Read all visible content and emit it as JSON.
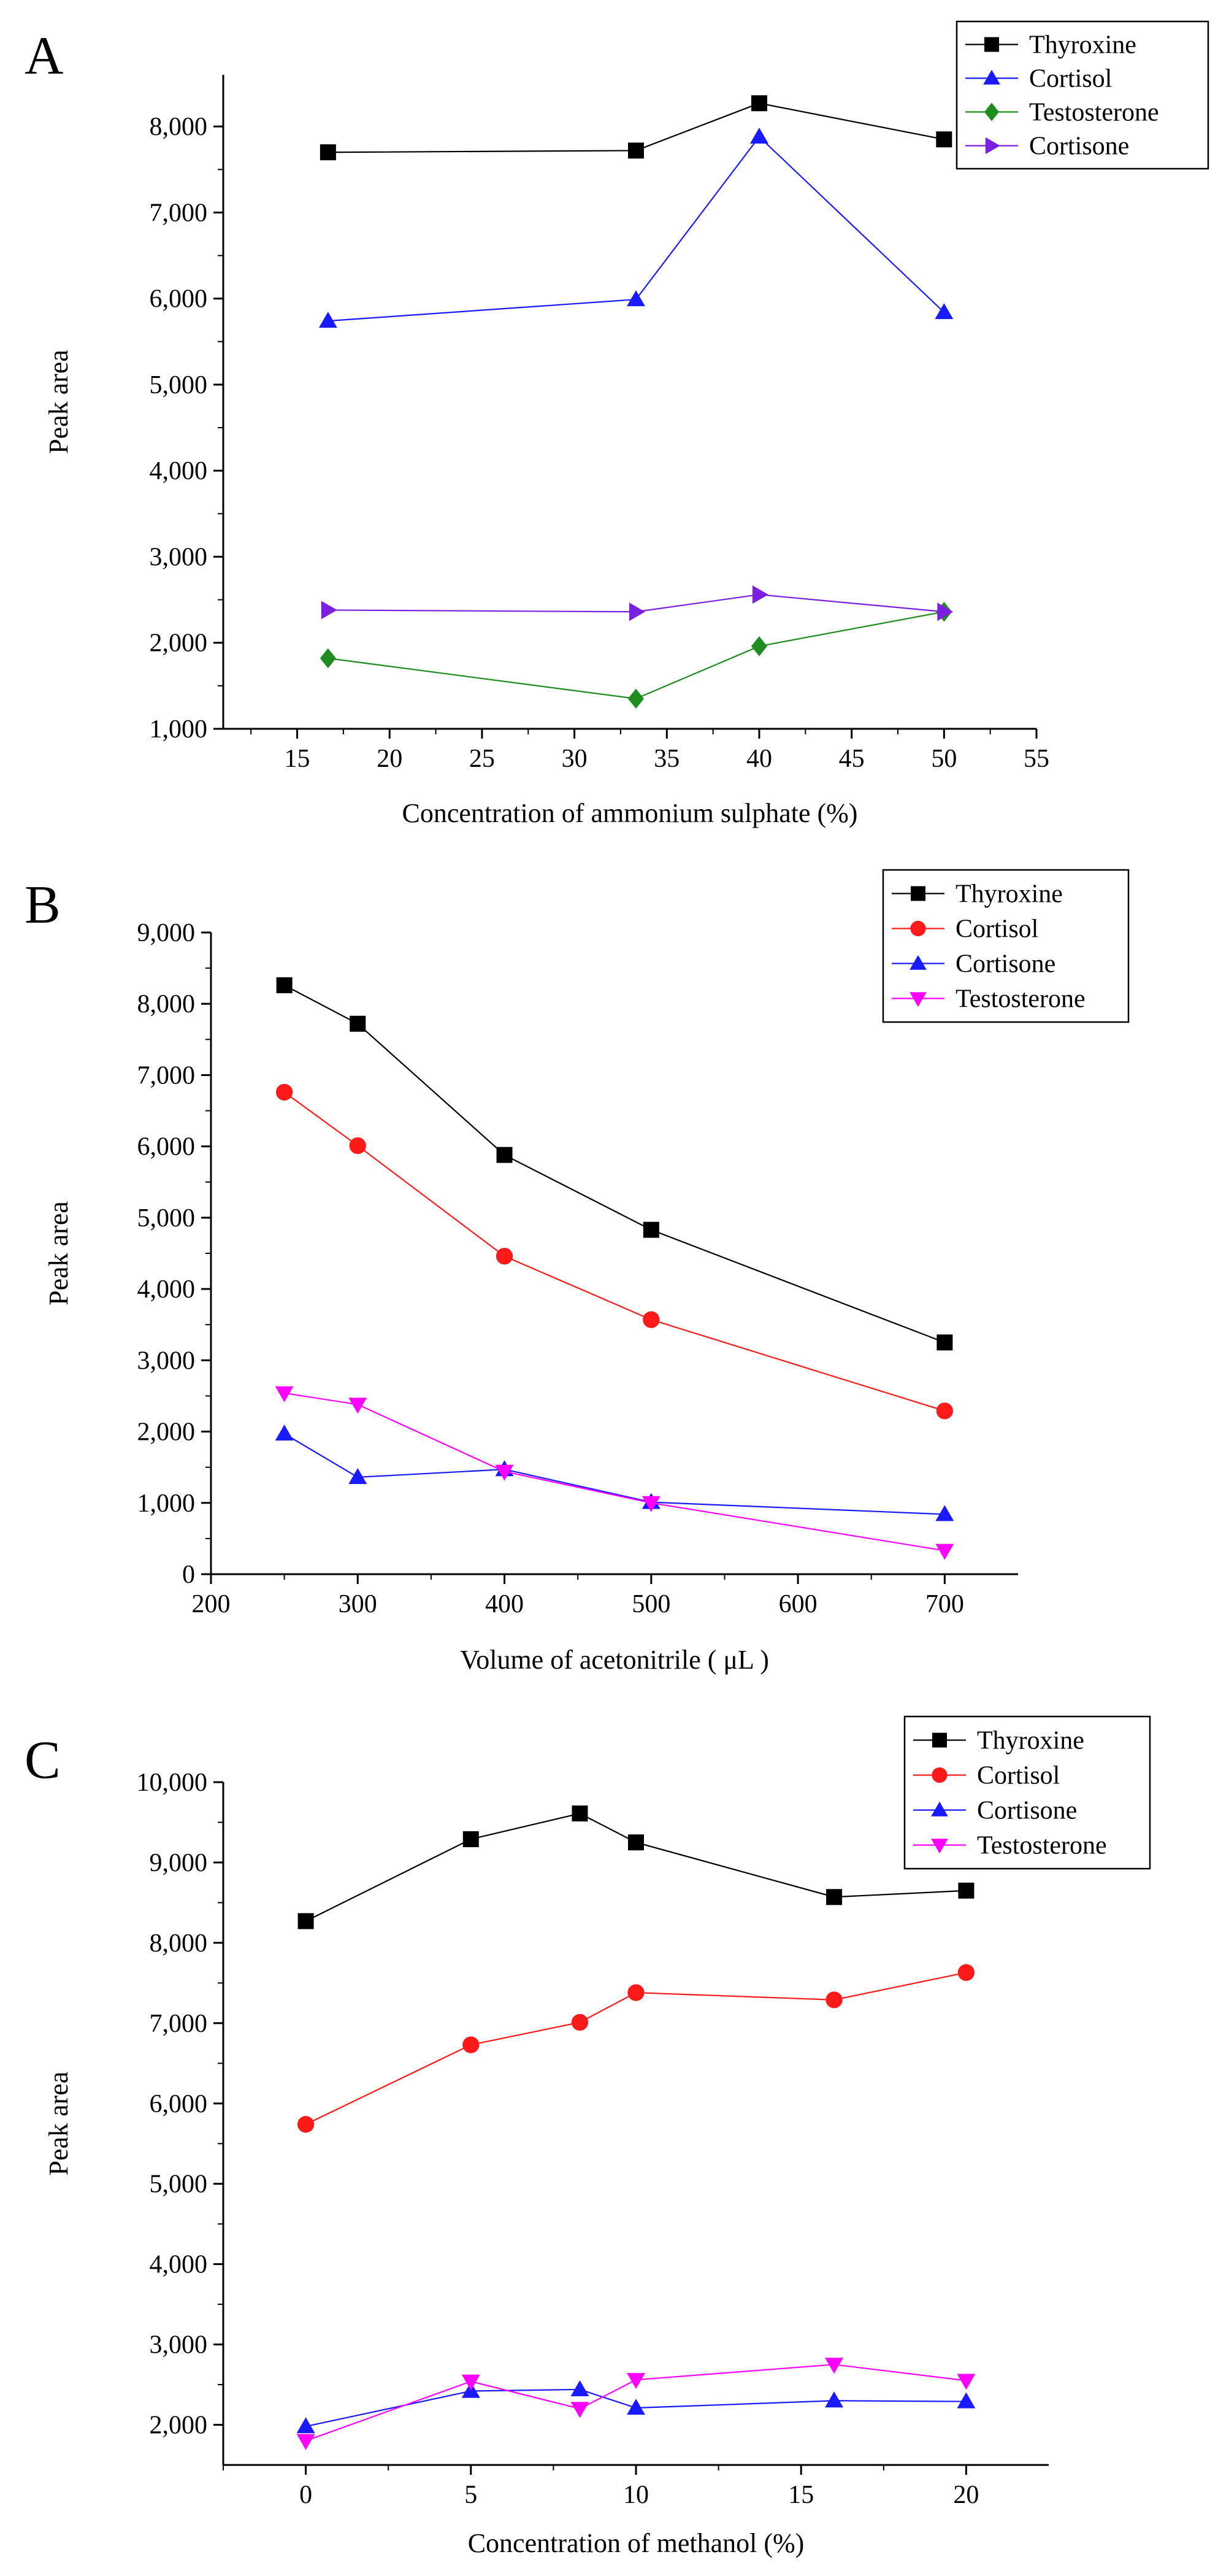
{
  "figure": {
    "panel_letters": [
      "A",
      "B",
      "C"
    ]
  },
  "chart_data": [
    {
      "panel": "A",
      "type": "line",
      "title": "",
      "xlabel": "Concentration of ammonium sulphate (%)",
      "ylabel": "Peak area",
      "xlim": [
        11,
        55
      ],
      "ylim": [
        1000,
        8600
      ],
      "xticks": [
        15,
        20,
        25,
        30,
        35,
        40,
        45,
        50,
        55
      ],
      "yticks": [
        1000,
        2000,
        3000,
        4000,
        5000,
        6000,
        7000,
        8000
      ],
      "xtick_labels": [
        "15",
        "20",
        "25",
        "30",
        "35",
        "40",
        "45",
        "50",
        "55"
      ],
      "ytick_labels": [
        "1,000",
        "2,000",
        "3,000",
        "4,000",
        "5,000",
        "6,000",
        "7,000",
        "8,000"
      ],
      "legend_position": "top-right",
      "series": [
        {
          "name": "Thyroxine",
          "color": "#000000",
          "marker": "square",
          "x": [
            16.67,
            33.33,
            40,
            50
          ],
          "y": [
            7700,
            7720,
            8270,
            7850
          ]
        },
        {
          "name": "Cortisol",
          "color": "#1a1aff",
          "marker": "triangle-up",
          "x": [
            16.67,
            33.33,
            40,
            50
          ],
          "y": [
            5740,
            5990,
            7880,
            5840
          ]
        },
        {
          "name": "Testosterone",
          "color": "#1e8c1e",
          "marker": "diamond",
          "x": [
            16.67,
            33.33,
            40,
            50
          ],
          "y": [
            1820,
            1350,
            1960,
            2360
          ]
        },
        {
          "name": "Cortisone",
          "color": "#7b1fe0",
          "marker": "triangle-right",
          "x": [
            16.67,
            33.33,
            40,
            50
          ],
          "y": [
            2380,
            2360,
            2560,
            2360
          ]
        }
      ]
    },
    {
      "panel": "B",
      "type": "line",
      "title": "",
      "xlabel": "Volume of acetonitrile ( μL )",
      "ylabel": "Peak area",
      "xlim": [
        200,
        750
      ],
      "ylim": [
        0,
        9000
      ],
      "xticks": [
        200,
        300,
        400,
        500,
        600,
        700
      ],
      "yticks": [
        0,
        1000,
        2000,
        3000,
        4000,
        5000,
        6000,
        7000,
        8000,
        9000
      ],
      "xtick_labels": [
        "200",
        "300",
        "400",
        "500",
        "600",
        "700"
      ],
      "ytick_labels": [
        "0",
        "1,000",
        "2,000",
        "3,000",
        "4,000",
        "5,000",
        "6,000",
        "7,000",
        "8,000",
        "9,000"
      ],
      "legend_position": "top-right",
      "series": [
        {
          "name": "Thyroxine",
          "color": "#000000",
          "marker": "square",
          "x": [
            250,
            300,
            400,
            500,
            700
          ],
          "y": [
            8260,
            7720,
            5880,
            4830,
            3250
          ]
        },
        {
          "name": "Cortisol",
          "color": "#ff1a1a",
          "marker": "circle",
          "x": [
            250,
            300,
            400,
            500,
            700
          ],
          "y": [
            6760,
            6010,
            4460,
            3570,
            2290
          ]
        },
        {
          "name": "Cortisone",
          "color": "#1a1aff",
          "marker": "triangle-up",
          "x": [
            250,
            300,
            400,
            500,
            700
          ],
          "y": [
            1970,
            1360,
            1470,
            1010,
            840
          ]
        },
        {
          "name": "Testosterone",
          "color": "#ff00ff",
          "marker": "triangle-down",
          "x": [
            250,
            300,
            400,
            500,
            700
          ],
          "y": [
            2540,
            2380,
            1440,
            1000,
            330
          ]
        }
      ]
    },
    {
      "panel": "C",
      "type": "line",
      "title": "",
      "xlabel": "Concentration of methanol (%)",
      "ylabel": "Peak area",
      "xlim": [
        -2.5,
        22.5
      ],
      "ylim": [
        1500,
        10000
      ],
      "xticks": [
        0,
        5,
        10,
        15,
        20
      ],
      "yticks": [
        2000,
        3000,
        4000,
        5000,
        6000,
        7000,
        8000,
        9000,
        10000
      ],
      "xtick_labels": [
        "0",
        "5",
        "10",
        "15",
        "20"
      ],
      "ytick_labels": [
        "2,000",
        "3,000",
        "4,000",
        "5,000",
        "6,000",
        "7,000",
        "8,000",
        "9,000",
        "10,000"
      ],
      "legend_position": "top-right",
      "series": [
        {
          "name": "Thyroxine",
          "color": "#000000",
          "marker": "square",
          "x": [
            0,
            5,
            8.3,
            10,
            16,
            20
          ],
          "y": [
            8270,
            9290,
            9610,
            9250,
            8570,
            8650
          ]
        },
        {
          "name": "Cortisol",
          "color": "#ff1a1a",
          "marker": "circle",
          "x": [
            0,
            5,
            8.3,
            10,
            16,
            20
          ],
          "y": [
            5740,
            6730,
            7010,
            7380,
            7290,
            7630
          ]
        },
        {
          "name": "Cortisone",
          "color": "#1a1aff",
          "marker": "triangle-up",
          "x": [
            0,
            5,
            8.3,
            10,
            16,
            20
          ],
          "y": [
            1980,
            2420,
            2440,
            2210,
            2300,
            2290
          ]
        },
        {
          "name": "Testosterone",
          "color": "#ff00ff",
          "marker": "triangle-down",
          "x": [
            0,
            5,
            8.3,
            10,
            16,
            20
          ],
          "y": [
            1800,
            2540,
            2200,
            2560,
            2750,
            2550
          ]
        }
      ]
    }
  ]
}
